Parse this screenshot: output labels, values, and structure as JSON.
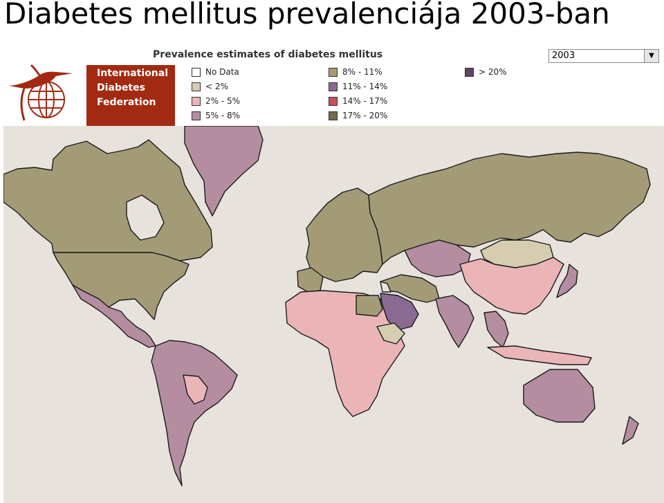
{
  "slide_title": "Diabetes mellitus prevalenciája 2003-ban",
  "map_title": "Prevalence estimates of diabetes mellitus",
  "year_select": {
    "value": "2003"
  },
  "organization": {
    "lines": [
      "International",
      "Diabetes",
      "Federation"
    ]
  },
  "legend": [
    {
      "label": "No Data",
      "color": "#ffffff"
    },
    {
      "label": "< 2%",
      "color": "#d6cdb1"
    },
    {
      "label": "2% - 5%",
      "color": "#ebb5b8"
    },
    {
      "label": "5% - 8%",
      "color": "#b48da0"
    },
    {
      "label": "8% - 11%",
      "color": "#a29b76"
    },
    {
      "label": "11% - 14%",
      "color": "#8a6a92"
    },
    {
      "label": "14% - 17%",
      "color": "#c7505e"
    },
    {
      "label": "17% - 20%",
      "color": "#716c4c"
    },
    {
      "label": "> 20%",
      "color": "#5e4562"
    }
  ],
  "colors": {
    "ocean": "#e8e2dd",
    "header_accent": "#a22a12",
    "no_data": "#ffffff",
    "lt2": "#d6cdb1",
    "p2_5": "#ebb5b8",
    "p5_8": "#b48da0",
    "p8_11": "#a29b76",
    "p11_14": "#8a6a92",
    "p14_17": "#c7505e",
    "p17_20": "#716c4c",
    "gt20": "#5e4562"
  },
  "regions": [
    {
      "name": "Greenland",
      "class": "5% - 8%"
    },
    {
      "name": "Canada",
      "class": "8% - 11%"
    },
    {
      "name": "United States",
      "class": "8% - 11%"
    },
    {
      "name": "Mexico & Central America",
      "class": "5% - 8%"
    },
    {
      "name": "South America",
      "class": "5% - 8%"
    },
    {
      "name": "Bolivia/Paraguay",
      "class": "2% - 5%"
    },
    {
      "name": "Europe",
      "class": "8% - 11%"
    },
    {
      "name": "Iberia",
      "class": "8% - 11%"
    },
    {
      "name": "Russia",
      "class": "8% - 11%"
    },
    {
      "name": "Kazakhstan/Central Asia",
      "class": "5% - 8%"
    },
    {
      "name": "Mongolia",
      "class": "< 2%"
    },
    {
      "name": "China",
      "class": "2% - 5%"
    },
    {
      "name": "Japan",
      "class": "5% - 8%"
    },
    {
      "name": "Middle East",
      "class": "8% - 11%"
    },
    {
      "name": "Arabian Peninsula",
      "class": "11% - 14%"
    },
    {
      "name": "India",
      "class": "5% - 8%"
    },
    {
      "name": "Southeast Asia",
      "class": "5% - 8%"
    },
    {
      "name": "Indonesia",
      "class": "2% - 5%"
    },
    {
      "name": "Africa",
      "class": "2% - 5%"
    },
    {
      "name": "Egypt",
      "class": "8% - 11%"
    },
    {
      "name": "Horn of Africa",
      "class": "< 2%"
    },
    {
      "name": "Australia",
      "class": "5% - 8%"
    },
    {
      "name": "New Zealand",
      "class": "5% - 8%"
    }
  ]
}
